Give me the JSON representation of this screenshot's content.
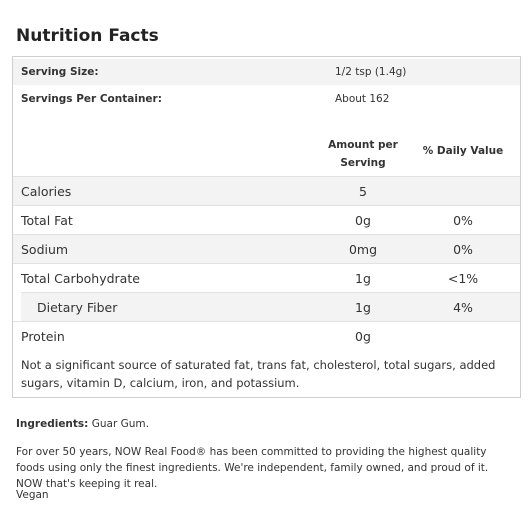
{
  "header": {
    "title": "Nutrition Facts"
  },
  "serving": {
    "size_label": "Serving Size:",
    "size": "1/2 tsp (1.4g)",
    "per_container_label": "Servings Per Container:",
    "per_container": "About 162"
  },
  "table": {
    "columns": [
      "Amount per Serving",
      "% Daily Value"
    ],
    "rows": [
      [
        "Calories",
        "5"
      ],
      [
        "Total Fat",
        "0g",
        "0%"
      ],
      [
        "Sodium",
        "0mg",
        "0%"
      ],
      [
        "Total Carbohydrate",
        "1g",
        "<1%"
      ],
      [
        "Dietary Fiber",
        "1g",
        "4%"
      ],
      [
        "Protein",
        "0g"
      ]
    ],
    "note": "Not a significant source of saturated fat, trans fat, cholesterol, total sugars, added sugars, vitamin D, calcium, iron, and potassium."
  },
  "footer": {
    "ingredients_label": "Ingredients:",
    "ingredients": "Guar Gum.",
    "about": "For over 50 years, NOW Real Food® has been committed to providing the highest quality foods using only the finest ingredients. We're independent, family owned, and proud of it. NOW that's keeping it real.",
    "tag": "Vegan"
  }
}
